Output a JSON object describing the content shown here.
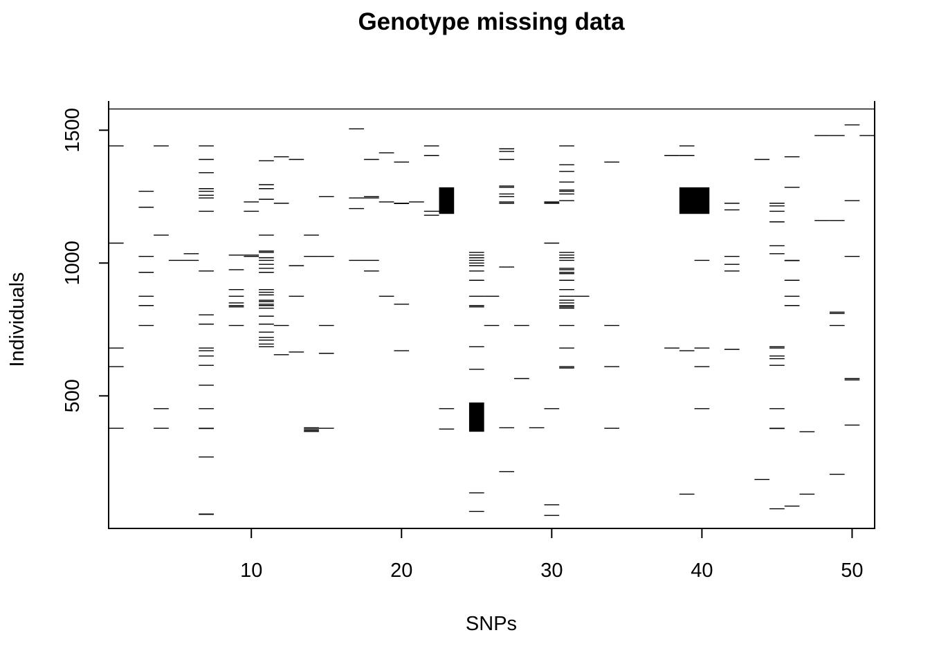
{
  "chart_data": {
    "type": "heatmap",
    "title": "Genotype missing data",
    "xlabel": "SNPs",
    "ylabel": "Individuals",
    "xlim": [
      0.5,
      51.5
    ],
    "ylim": [
      1,
      1610
    ],
    "xticks": [
      10,
      20,
      30,
      40,
      50
    ],
    "yticks": [
      500,
      1000,
      1500
    ],
    "grid": false,
    "colors": {
      "missing": "#000000",
      "present": "#ffffff",
      "axis": "#000000"
    },
    "missing": [
      {
        "snp": 1,
        "rows": [
          1441,
          1075,
          680,
          610,
          378
        ]
      },
      {
        "snp": 3,
        "rows": [
          1270,
          1210,
          1025,
          965,
          875,
          840,
          765
        ]
      },
      {
        "snp": 4,
        "rows": [
          1441,
          1105,
          452,
          378
        ]
      },
      {
        "snp": 5,
        "rows": [
          1010
        ]
      },
      {
        "snp": 6,
        "rows": [
          1035,
          1010
        ]
      },
      {
        "snp": 7,
        "rows": [
          1441,
          1390,
          1340,
          1280,
          1270,
          1255,
          1245,
          1195,
          970,
          805,
          770,
          680,
          670,
          650,
          615,
          540,
          452,
          378,
          377,
          270,
          55,
          54
        ]
      },
      {
        "snp": 9,
        "rows": [
          1030,
          975,
          900,
          875,
          850,
          840,
          835,
          765
        ]
      },
      {
        "snp": 10,
        "rows": [
          1230,
          1195,
          1030,
          1025
        ]
      },
      {
        "snp": 11,
        "rows": [
          1385,
          1295,
          1280,
          1240,
          1105,
          1045,
          1040,
          1020,
          1010,
          995,
          980,
          965,
          900,
          890,
          880,
          860,
          855,
          845,
          840,
          830,
          800,
          770,
          740,
          720,
          710,
          695,
          685
        ]
      },
      {
        "snp": 12,
        "rows": [
          1400,
          1225,
          765,
          655
        ]
      },
      {
        "snp": 13,
        "rows": [
          1390,
          990,
          875,
          665
        ]
      },
      {
        "snp": 14,
        "rows": [
          1105,
          1025,
          380,
          375,
          370,
          366
        ]
      },
      {
        "snp": 15,
        "rows": [
          1250,
          1025,
          765,
          660,
          378
        ]
      },
      {
        "snp": 17,
        "rows": [
          1505,
          1245,
          1205,
          1010
        ]
      },
      {
        "snp": 18,
        "rows": [
          1390,
          1250,
          1245,
          1010,
          970
        ]
      },
      {
        "snp": 19,
        "rows": [
          1415,
          1230,
          875
        ]
      },
      {
        "snp": 20,
        "rows": [
          1380,
          1225,
          1224,
          845,
          670
        ]
      },
      {
        "snp": 21,
        "rows": [
          1230
        ]
      },
      {
        "snp": 22,
        "rows": [
          1441,
          1405,
          1195,
          1180
        ]
      },
      {
        "snp": 23,
        "rows": [
          452,
          375
        ]
      },
      {
        "snp": 25,
        "rows": [
          1040,
          1030,
          1020,
          1010,
          1000,
          990,
          970,
          935,
          875,
          840,
          835,
          685,
          600,
          135,
          65
        ]
      },
      {
        "snp": 26,
        "rows": [
          875,
          765
        ]
      },
      {
        "snp": 27,
        "rows": [
          1430,
          1420,
          1390,
          1290,
          1285,
          1260,
          1250,
          1230,
          1225,
          985,
          380,
          215
        ]
      },
      {
        "snp": 28,
        "rows": [
          765,
          565
        ]
      },
      {
        "snp": 29,
        "rows": [
          380
        ]
      },
      {
        "snp": 30,
        "rows": [
          1230,
          1226,
          1225,
          1075,
          452,
          90,
          50
        ]
      },
      {
        "snp": 31,
        "rows": [
          1441,
          1370,
          1345,
          1305,
          1275,
          1270,
          1260,
          1235,
          1040,
          1030,
          1020,
          1010,
          980,
          975,
          965,
          960,
          935,
          900,
          875,
          860,
          850,
          840,
          835,
          830,
          765,
          680,
          610,
          605
        ]
      },
      {
        "snp": 32,
        "rows": [
          875
        ]
      },
      {
        "snp": 34,
        "rows": [
          1380,
          765,
          610,
          378
        ]
      },
      {
        "snp": 38,
        "rows": [
          1405,
          680
        ]
      },
      {
        "snp": 39,
        "rows": [
          1441,
          1405,
          670,
          130
        ]
      },
      {
        "snp": 40,
        "rows": [
          1010,
          680,
          610,
          452
        ]
      },
      {
        "snp": 42,
        "rows": [
          1225,
          1200,
          1025,
          995,
          970,
          675
        ]
      },
      {
        "snp": 44,
        "rows": [
          1390,
          185
        ]
      },
      {
        "snp": 45,
        "rows": [
          1225,
          1215,
          1195,
          1155,
          1065,
          1035,
          685,
          680,
          650,
          640,
          615,
          452,
          378,
          377,
          75
        ]
      },
      {
        "snp": 46,
        "rows": [
          1400,
          1285,
          1010,
          1009,
          935,
          875,
          840,
          85
        ]
      },
      {
        "snp": 47,
        "rows": [
          365,
          130
        ]
      },
      {
        "snp": 48,
        "rows": [
          1480,
          1160
        ]
      },
      {
        "snp": 49,
        "rows": [
          1480,
          1160,
          815,
          810,
          765,
          205
        ]
      },
      {
        "snp": 50,
        "rows": [
          1520,
          1235,
          1025,
          565,
          560,
          390
        ]
      },
      {
        "snp": 51,
        "rows": [
          1480
        ]
      }
    ],
    "missing_blocks": [
      {
        "snp_from": 23,
        "snp_to": 23,
        "row_from": 1185,
        "row_to": 1285
      },
      {
        "snp_from": 25,
        "snp_to": 25,
        "row_from": 365,
        "row_to": 475
      },
      {
        "snp_from": 39,
        "snp_to": 40,
        "row_from": 1185,
        "row_to": 1285
      }
    ],
    "full_missing_rows": [
      1580
    ]
  }
}
